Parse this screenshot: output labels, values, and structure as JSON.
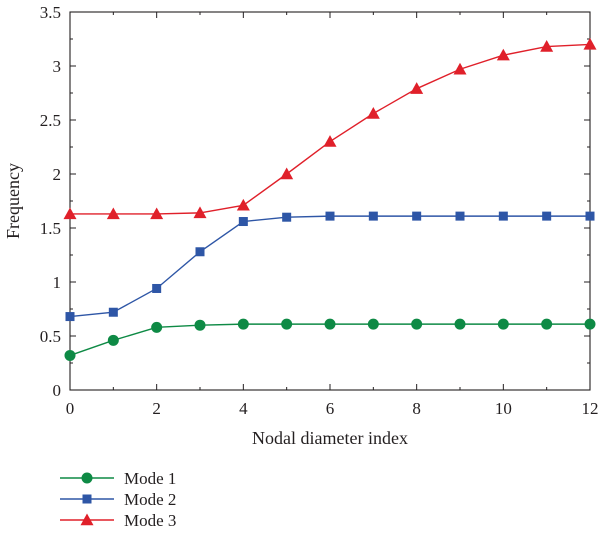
{
  "chart_data": {
    "type": "line",
    "xlabel": "Nodal diameter index",
    "ylabel": "Frequency",
    "xlim": [
      0,
      12
    ],
    "ylim": [
      0,
      3.5
    ],
    "x_ticks": [
      "0",
      "2",
      "4",
      "6",
      "8",
      "10",
      "12"
    ],
    "y_ticks": [
      "0",
      "0.5",
      "1",
      "1.5",
      "2",
      "2.5",
      "3",
      "3.5"
    ],
    "grid": false,
    "legend_position": "bottom-left",
    "x": [
      0,
      1,
      2,
      3,
      4,
      5,
      6,
      7,
      8,
      9,
      10,
      11,
      12
    ],
    "series": [
      {
        "name": "Mode 1",
        "marker": "circle",
        "color": "#0e8a45",
        "values": [
          0.32,
          0.46,
          0.58,
          0.6,
          0.61,
          0.61,
          0.61,
          0.61,
          0.61,
          0.61,
          0.61,
          0.61,
          0.61
        ]
      },
      {
        "name": "Mode 2",
        "marker": "square",
        "color": "#2e56a6",
        "values": [
          0.68,
          0.72,
          0.94,
          1.28,
          1.56,
          1.6,
          1.61,
          1.61,
          1.61,
          1.61,
          1.61,
          1.61,
          1.61
        ]
      },
      {
        "name": "Mode 3",
        "marker": "triangle",
        "color": "#e0202a",
        "values": [
          1.63,
          1.63,
          1.63,
          1.64,
          1.71,
          2.0,
          2.3,
          2.56,
          2.79,
          2.97,
          3.1,
          3.18,
          3.2
        ]
      }
    ]
  }
}
